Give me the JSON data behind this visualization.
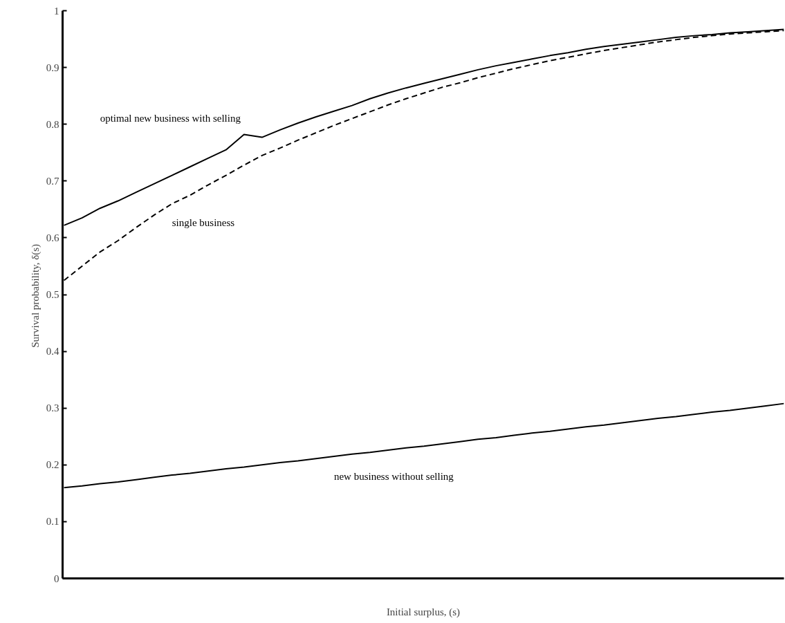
{
  "chart_data": {
    "type": "line",
    "xlabel": "Initial surplus, (s)",
    "ylabel": "Survival probability,  δ(s)",
    "categories": [
      null,
      null,
      null,
      null,
      null,
      null,
      null,
      null,
      null,
      null,
      null,
      null,
      null,
      null,
      null,
      null,
      null,
      null,
      null,
      null,
      null,
      null,
      null,
      null,
      null,
      null,
      null,
      null,
      null,
      null,
      null,
      null,
      null,
      null,
      null,
      null,
      null,
      null,
      null,
      null,
      null
    ],
    "ylim": [
      0,
      1
    ],
    "yticks": [
      0,
      0.1,
      0.2,
      0.3,
      0.4,
      0.5,
      0.6,
      0.7,
      0.8,
      0.9,
      1
    ],
    "grid": false,
    "legend": false,
    "marker": "none",
    "series": [
      {
        "name": "optimal new business with selling",
        "color": "#000000",
        "line_style": "solid",
        "values": [
          0.622,
          0.635,
          0.652,
          0.665,
          0.68,
          0.695,
          0.71,
          0.725,
          0.74,
          0.755,
          0.782,
          0.777,
          0.79,
          0.802,
          0.813,
          0.823,
          0.833,
          0.845,
          0.855,
          0.864,
          0.872,
          0.88,
          0.888,
          0.896,
          0.903,
          0.909,
          0.915,
          0.921,
          0.926,
          0.932,
          0.937,
          0.941,
          0.945,
          0.949,
          0.953,
          0.956,
          0.958,
          0.961,
          0.963,
          0.965,
          0.967
        ]
      },
      {
        "name": "single business",
        "color": "#000000",
        "line_style": "dashed",
        "values": [
          0.525,
          0.55,
          0.575,
          0.595,
          0.618,
          0.64,
          0.66,
          0.675,
          0.693,
          0.71,
          0.728,
          0.745,
          0.758,
          0.772,
          0.785,
          0.798,
          0.81,
          0.822,
          0.834,
          0.845,
          0.855,
          0.865,
          0.873,
          0.882,
          0.89,
          0.898,
          0.905,
          0.912,
          0.918,
          0.924,
          0.93,
          0.935,
          0.94,
          0.945,
          0.949,
          0.953,
          0.956,
          0.959,
          0.961,
          0.963,
          0.965
        ]
      },
      {
        "name": "new business without selling",
        "color": "#000000",
        "line_style": "solid",
        "values": [
          0.16,
          0.163,
          0.167,
          0.17,
          0.174,
          0.178,
          0.182,
          0.185,
          0.189,
          0.193,
          0.196,
          0.2,
          0.204,
          0.207,
          0.211,
          0.215,
          0.219,
          0.222,
          0.226,
          0.23,
          0.233,
          0.237,
          0.241,
          0.245,
          0.248,
          0.252,
          0.256,
          0.259,
          0.263,
          0.267,
          0.27,
          0.274,
          0.278,
          0.282,
          0.285,
          0.289,
          0.293,
          0.296,
          0.3,
          0.304,
          0.308
        ]
      }
    ]
  }
}
